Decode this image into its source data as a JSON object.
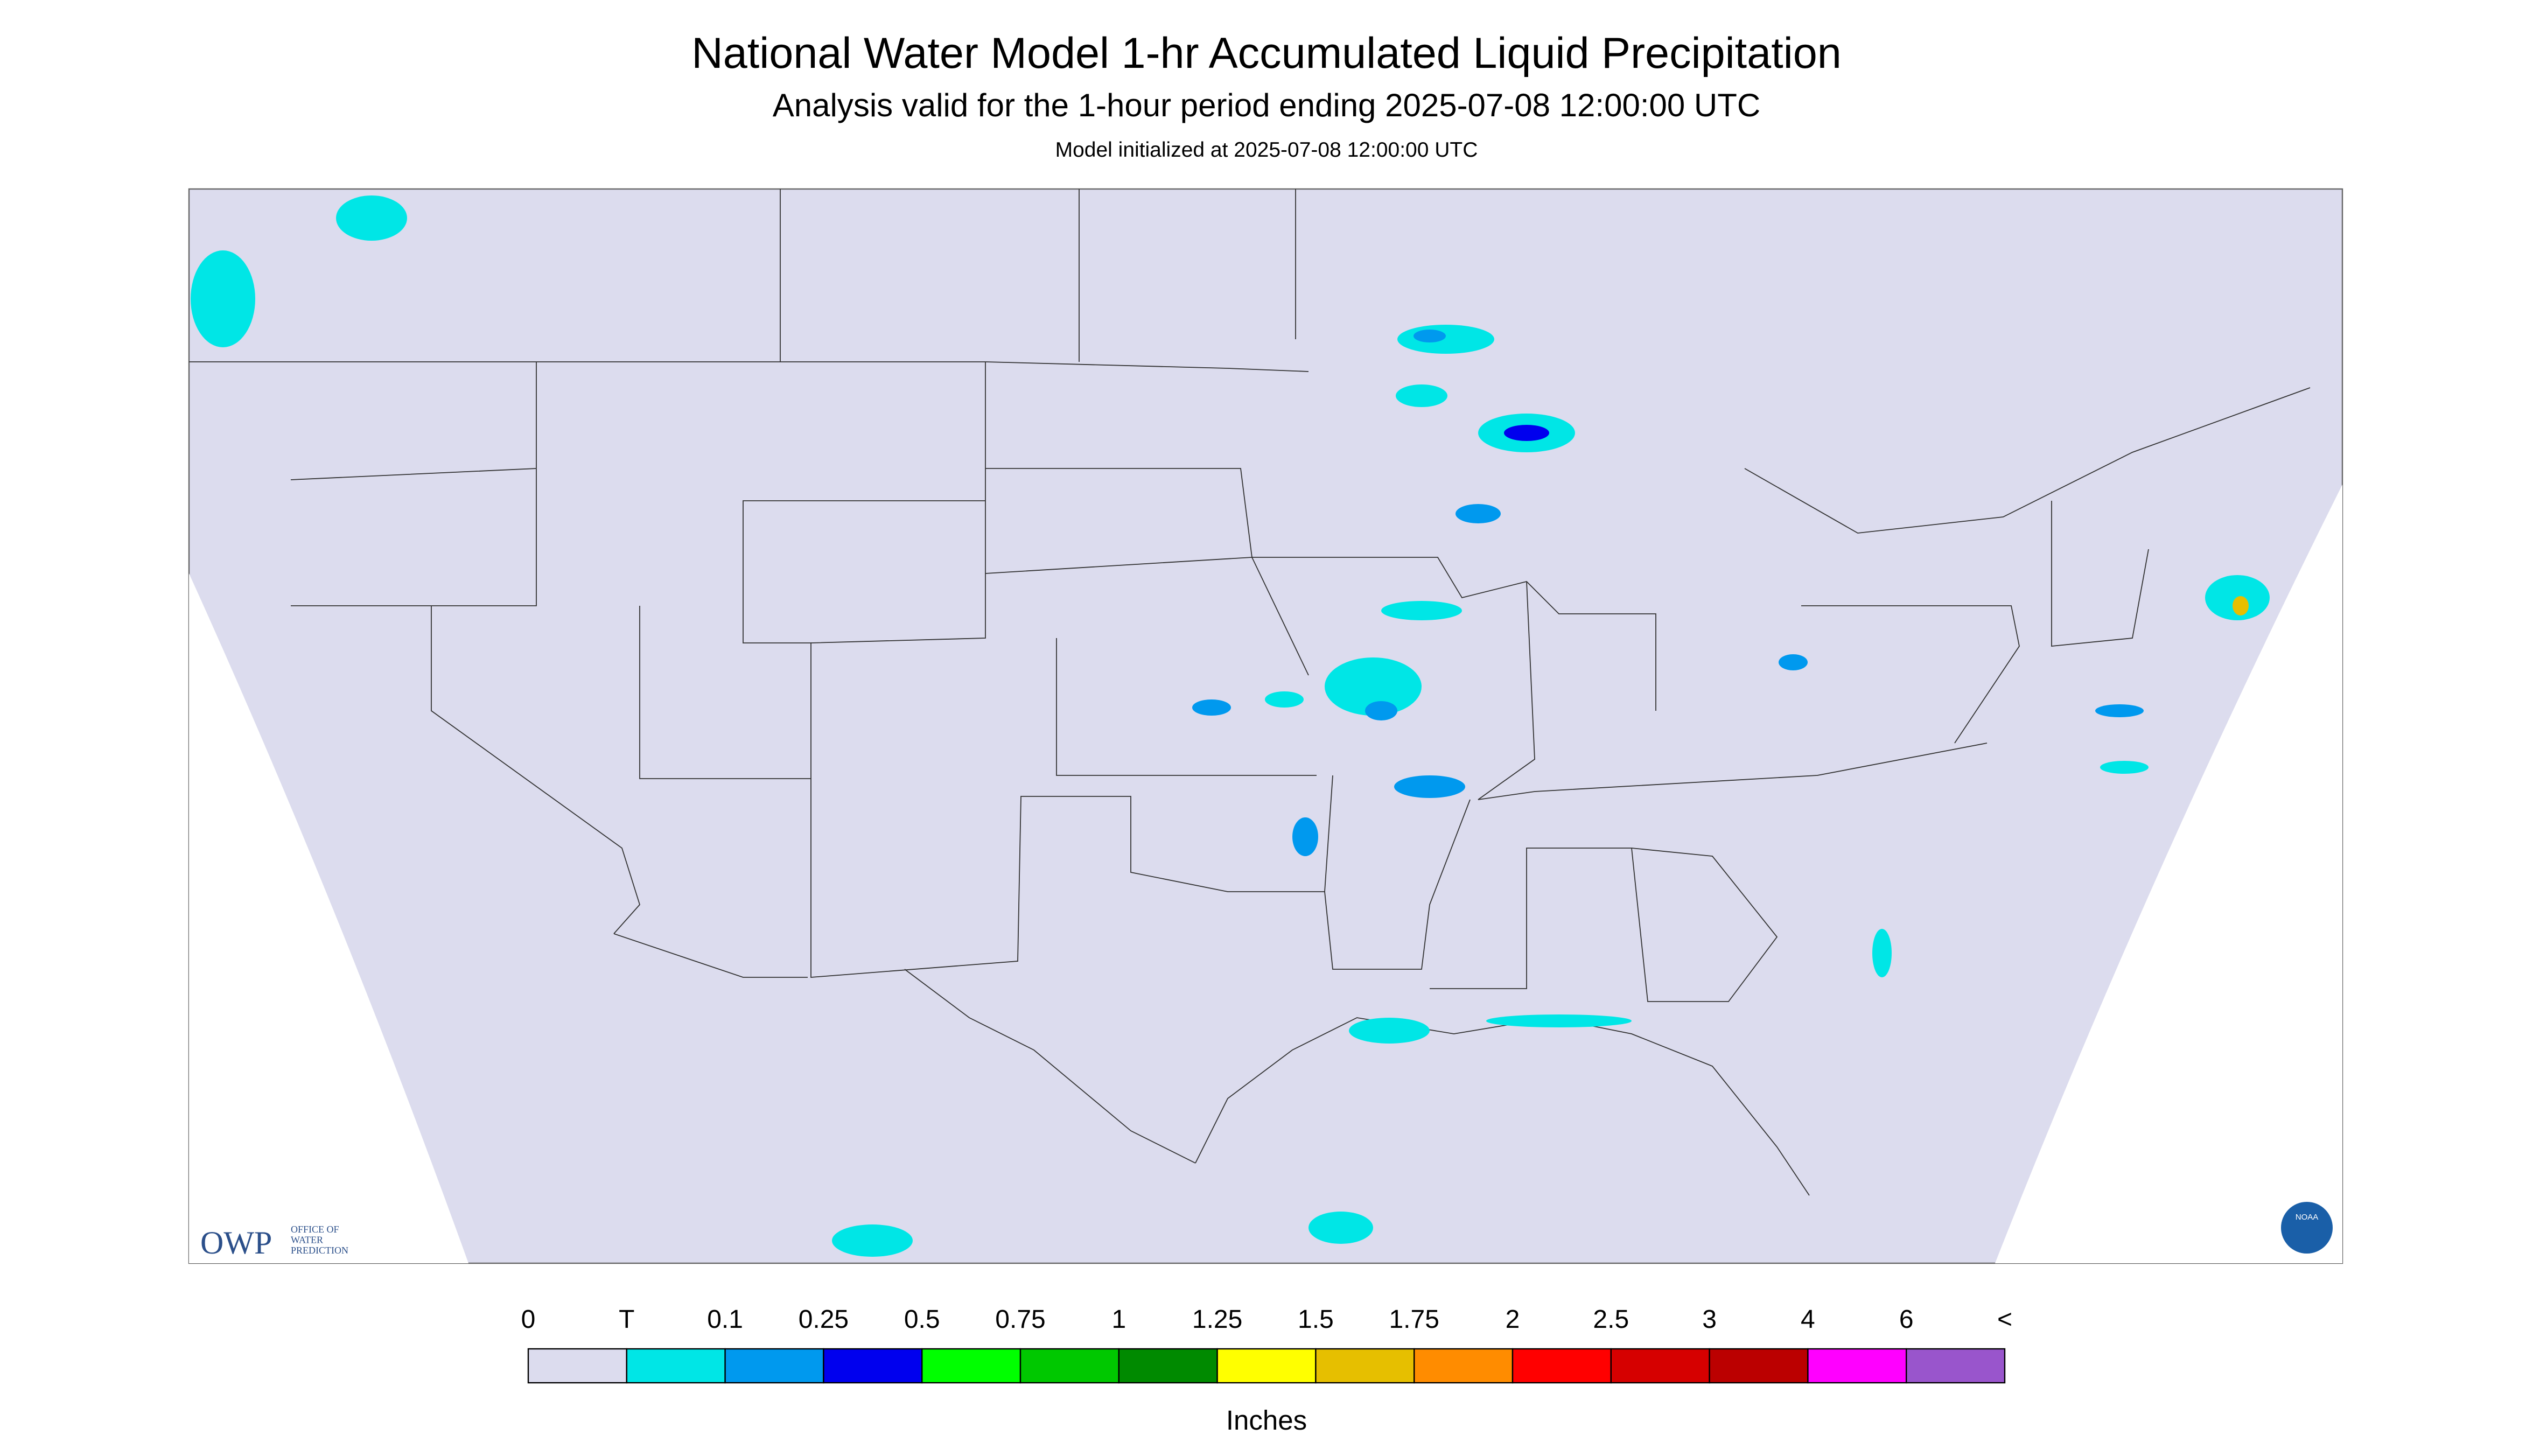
{
  "header": {
    "title": "National Water Model 1-hr Accumulated Liquid Precipitation",
    "subtitle": "Analysis valid for the 1-hour period ending 2025-07-08 12:00:00 UTC",
    "note": "Model initialized at 2025-07-08 12:00:00 UTC"
  },
  "logos": {
    "owp": "OWP",
    "owp_name": [
      "OFFICE OF",
      "WATER",
      "PREDICTION"
    ],
    "noaa": "NOAA"
  },
  "legend": {
    "labels": [
      "0",
      "T",
      "0.1",
      "0.25",
      "0.5",
      "0.75",
      "1",
      "1.25",
      "1.5",
      "1.75",
      "2",
      "2.5",
      "3",
      "4",
      "6",
      "<"
    ],
    "colors": [
      "#dcdcee",
      "#00e6e6",
      "#0099ee",
      "#0000ee",
      "#00ff00",
      "#00c800",
      "#008a00",
      "#ffff00",
      "#e6bf00",
      "#ff8c00",
      "#ff0000",
      "#d60000",
      "#bb0000",
      "#ff00ff",
      "#9955cc"
    ],
    "units": "Inches"
  }
}
